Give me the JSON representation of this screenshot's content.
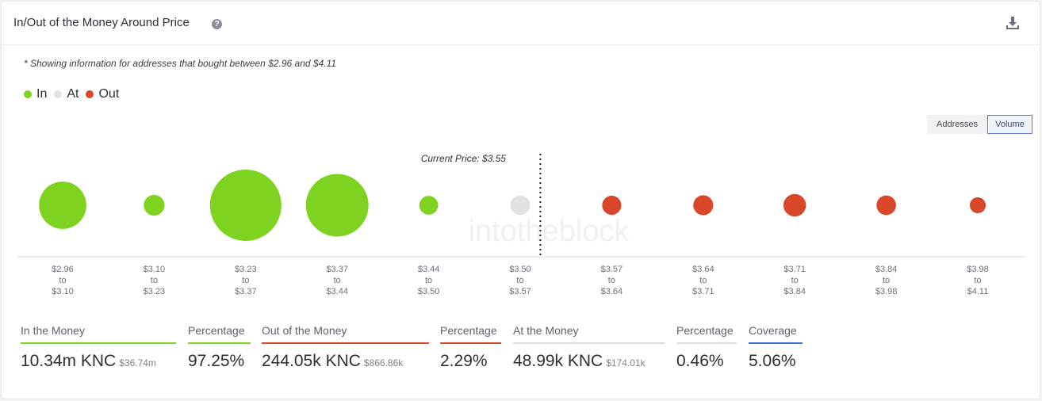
{
  "header": {
    "title": "In/Out of the Money Around Price",
    "help_icon": "question-circle-icon",
    "download_icon": "download-icon"
  },
  "note": "* Showing information for addresses that bought between $2.96 and $4.11",
  "legend": [
    {
      "label": "In",
      "color": "#7ed321"
    },
    {
      "label": "At",
      "color": "#e2e2e2"
    },
    {
      "label": "Out",
      "color": "#d9472b"
    }
  ],
  "toggle": {
    "addresses": "Addresses",
    "volume": "Volume",
    "selected": "Volume"
  },
  "watermark": "intotheblock",
  "chart_data": {
    "type": "scatter",
    "current_price_label": "Current Price: $3.55",
    "current_price": 3.55,
    "categories": [
      {
        "from": "$2.96",
        "to": "$3.10",
        "status": "in",
        "volume_rel": 0.44
      },
      {
        "from": "$3.10",
        "to": "$3.23",
        "status": "in",
        "volume_rel": 0.085
      },
      {
        "from": "$3.23",
        "to": "$3.37",
        "status": "in",
        "volume_rel": 1.0
      },
      {
        "from": "$3.37",
        "to": "$3.44",
        "status": "in",
        "volume_rel": 0.77
      },
      {
        "from": "$3.44",
        "to": "$3.50",
        "status": "in",
        "volume_rel": 0.07
      },
      {
        "from": "$3.50",
        "to": "$3.57",
        "status": "at",
        "volume_rel": 0.075
      },
      {
        "from": "$3.57",
        "to": "$3.64",
        "status": "out",
        "volume_rel": 0.072
      },
      {
        "from": "$3.64",
        "to": "$3.71",
        "status": "out",
        "volume_rel": 0.078
      },
      {
        "from": "$3.71",
        "to": "$3.84",
        "status": "out",
        "volume_rel": 0.1
      },
      {
        "from": "$3.84",
        "to": "$3.98",
        "status": "out",
        "volume_rel": 0.075
      },
      {
        "from": "$3.98",
        "to": "$4.11",
        "status": "out",
        "volume_rel": 0.05
      }
    ],
    "to_label": "to"
  },
  "stats": [
    {
      "label": "In the Money",
      "value": "10.34m KNC",
      "sub": "$36.74m",
      "color": "#7ed321"
    },
    {
      "label": "Percentage",
      "value": "97.25%",
      "sub": "",
      "color": "#7ed321"
    },
    {
      "label": "Out of the Money",
      "value": "244.05k KNC",
      "sub": "$866.86k",
      "color": "#d9472b"
    },
    {
      "label": "Percentage",
      "value": "2.29%",
      "sub": "",
      "color": "#d9472b"
    },
    {
      "label": "At the Money",
      "value": "48.99k KNC",
      "sub": "$174.01k",
      "color": "#dcdcdc"
    },
    {
      "label": "Percentage",
      "value": "0.46%",
      "sub": "",
      "color": "#dcdcdc"
    },
    {
      "label": "Coverage",
      "value": "5.06%",
      "sub": "",
      "color": "#3d6fd6"
    }
  ]
}
